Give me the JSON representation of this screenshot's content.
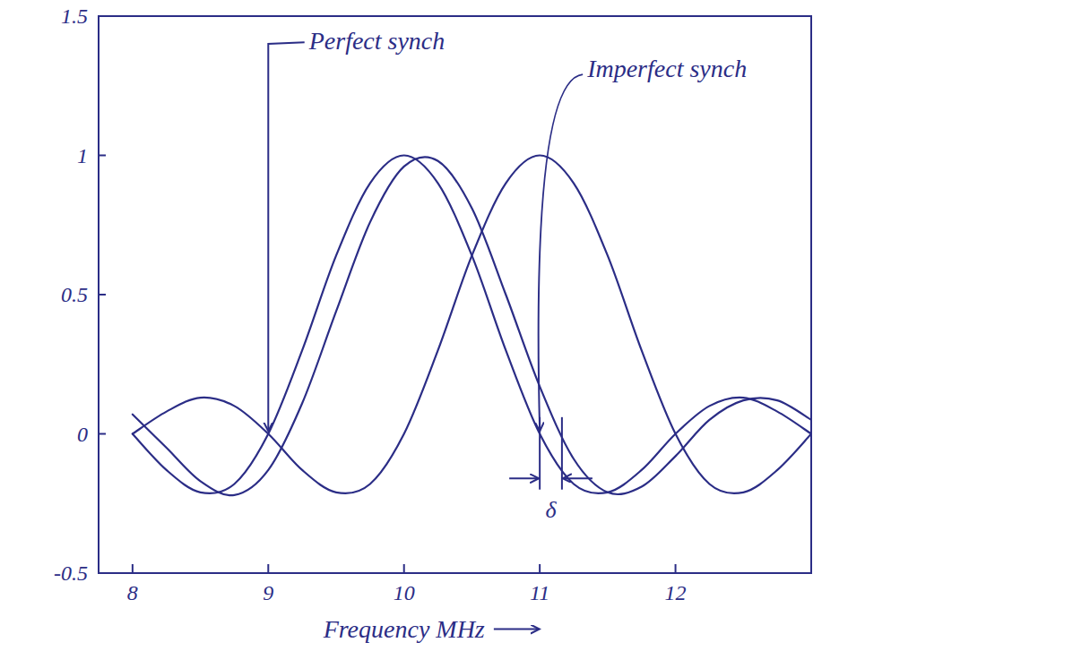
{
  "chart_data": {
    "type": "line",
    "x_label": "Frequency MHz",
    "x": [
      8,
      8.25,
      8.5,
      8.75,
      9,
      9.25,
      9.5,
      9.75,
      10,
      10.25,
      10.5,
      10.75,
      11,
      11.25,
      11.5,
      11.75,
      12,
      12.25,
      12.5,
      12.75,
      13
    ],
    "series": [
      {
        "color": "#2b2d86",
        "line_style": "solid",
        "values": [
          0,
          -0.13,
          -0.21,
          -0.18,
          0,
          0.3,
          0.64,
          0.9,
          1,
          0.9,
          0.64,
          0.3,
          0,
          -0.18,
          -0.21,
          -0.13,
          0,
          0.1,
          0.13,
          0.08,
          0
        ]
      },
      {
        "color": "#2b2d86",
        "line_style": "solid",
        "values": [
          0,
          0.08,
          0.13,
          0.1,
          0,
          -0.13,
          -0.21,
          -0.18,
          0,
          0.3,
          0.64,
          0.9,
          1,
          0.9,
          0.64,
          0.3,
          0,
          -0.18,
          -0.21,
          -0.13,
          0
        ]
      },
      {
        "color": "#2b2d86",
        "line_style": "solid",
        "values": [
          0.07,
          -0.05,
          -0.17,
          -0.22,
          -0.13,
          0.11,
          0.44,
          0.76,
          0.96,
          0.98,
          0.81,
          0.5,
          0.17,
          -0.09,
          -0.21,
          -0.19,
          -0.08,
          0.05,
          0.12,
          0.12,
          0.05
        ]
      }
    ],
    "xlim": [
      7.75,
      13
    ],
    "ylim": [
      -0.5,
      1.5
    ],
    "xticks": [
      8,
      9,
      10,
      11,
      12
    ],
    "yticks": [
      -0.5,
      0,
      0.5,
      1,
      1.5
    ],
    "grid": false,
    "annotations": [
      {
        "text": "Perfect synch"
      },
      {
        "text": "Imperfect synch"
      },
      {
        "text": "δ"
      }
    ]
  }
}
